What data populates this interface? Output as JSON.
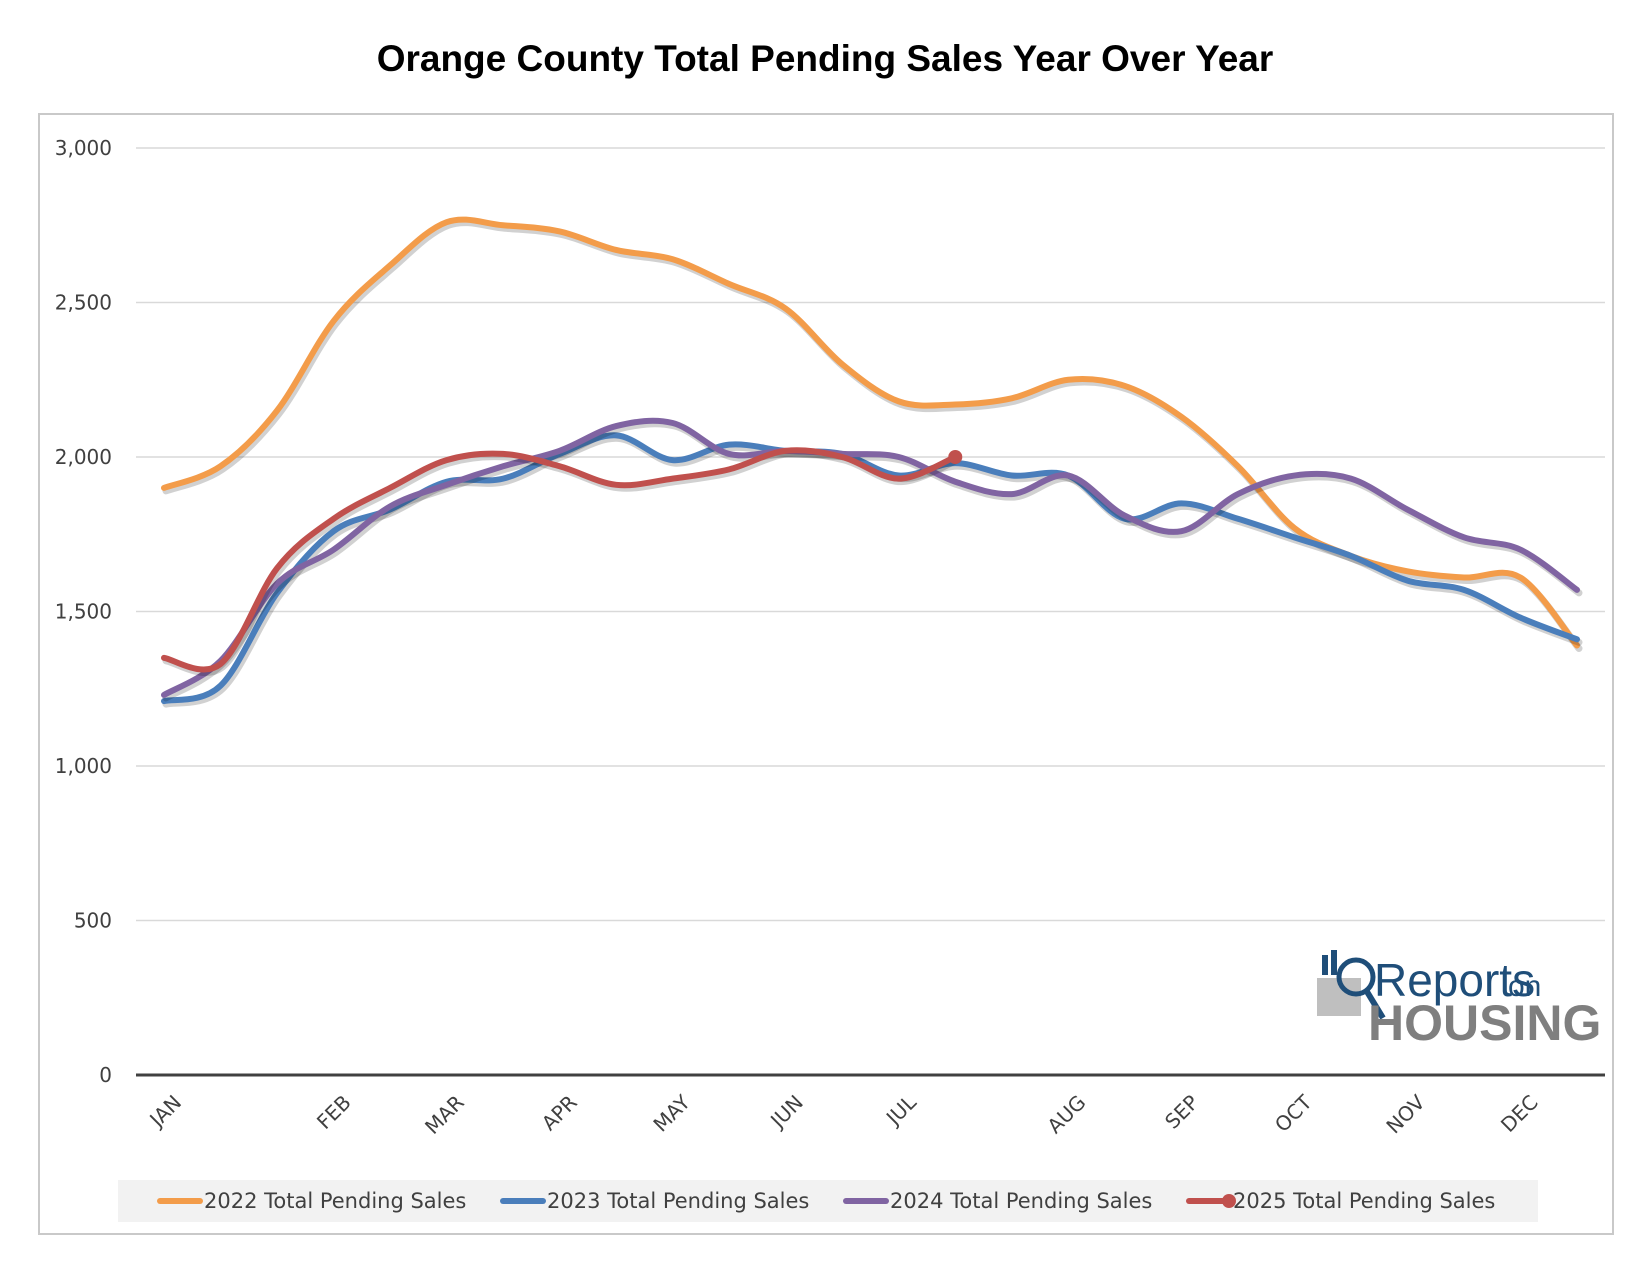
{
  "chart_data": {
    "type": "line",
    "title": "Orange County Total Pending Sales Year Over Year",
    "y_ticks": [
      "0",
      "500",
      "1,000",
      "1,500",
      "2,000",
      "2,500",
      "3,000"
    ],
    "ylim": [
      0,
      3000
    ],
    "grid": true,
    "legend_position": "bottom",
    "month_labels": [
      "JAN",
      "FEB",
      "MAR",
      "APR",
      "MAY",
      "JUN",
      "JUL",
      "AUG",
      "SEP",
      "OCT",
      "NOV",
      "DEC"
    ],
    "x_label_points": [
      0,
      3,
      5,
      7,
      9,
      11,
      13,
      16,
      18,
      20,
      22,
      24
    ],
    "x_points": 26,
    "series": [
      {
        "name": "2022 Total Pending Sales",
        "color": "#f39c4a",
        "marker_on_last": false,
        "values": [
          1900,
          1970,
          2150,
          2440,
          2620,
          2760,
          2750,
          2730,
          2670,
          2640,
          2560,
          2480,
          2300,
          2180,
          2170,
          2190,
          2250,
          2230,
          2130,
          1970,
          1770,
          1680,
          1630,
          1610,
          1610,
          1390
        ]
      },
      {
        "name": "2023 Total Pending Sales",
        "color": "#4a7ebb",
        "marker_on_last": false,
        "values": [
          1210,
          1260,
          1560,
          1760,
          1830,
          1920,
          1930,
          2010,
          2070,
          1990,
          2040,
          2020,
          2010,
          1940,
          1980,
          1940,
          1940,
          1800,
          1850,
          1800,
          1740,
          1680,
          1600,
          1570,
          1480,
          1410
        ]
      },
      {
        "name": "2024 Total Pending Sales",
        "color": "#8064a2",
        "marker_on_last": false,
        "values": [
          1230,
          1340,
          1590,
          1700,
          1840,
          1910,
          1970,
          2020,
          2100,
          2110,
          2010,
          2020,
          2010,
          2000,
          1920,
          1880,
          1940,
          1810,
          1760,
          1880,
          1940,
          1930,
          1830,
          1740,
          1700,
          1570
        ]
      },
      {
        "name": "2025 Total Pending Sales",
        "color": "#c0504d",
        "marker_on_last": true,
        "values": [
          1350,
          1330,
          1640,
          1800,
          1900,
          1990,
          2010,
          1970,
          1910,
          1930,
          1960,
          2020,
          2000,
          1930,
          2000
        ]
      }
    ]
  },
  "logo": {
    "line1": "Reports",
    "line1_suffix": "on",
    "line2": "HOUSING"
  }
}
